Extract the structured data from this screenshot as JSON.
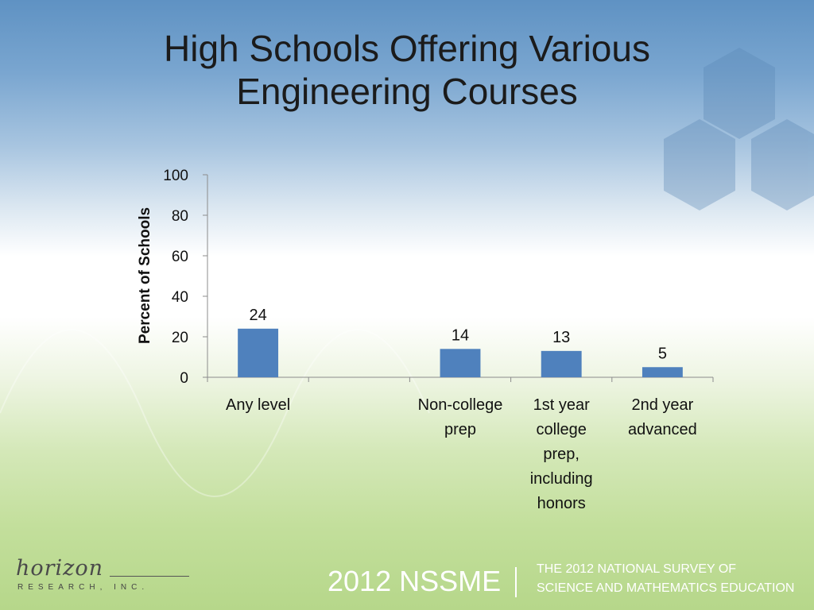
{
  "slide": {
    "title_lines": [
      "High Schools Offering Various",
      "Engineering Courses"
    ]
  },
  "chart_data": {
    "type": "bar",
    "title": "High Schools Offering Various Engineering Courses",
    "ylabel": "Percent of Schools",
    "xlabel": "",
    "ylim": [
      0,
      100
    ],
    "yticks": [
      0,
      20,
      40,
      60,
      80,
      100
    ],
    "grid": false,
    "legend": "none",
    "categories": [
      {
        "label": "Any level",
        "lines": [
          "Any level"
        ],
        "value": 24
      },
      {
        "label": "",
        "lines": [],
        "value": null
      },
      {
        "label": "Non-college prep",
        "lines": [
          "Non-college",
          "prep"
        ],
        "value": 14
      },
      {
        "label": "1st year college prep, including honors",
        "lines": [
          "1st year",
          "college",
          "prep,",
          "including",
          "honors"
        ],
        "value": 13
      },
      {
        "label": "2nd year advanced",
        "lines": [
          "2nd year",
          "advanced"
        ],
        "value": 5
      }
    ],
    "bar_color": "#4f81bd"
  },
  "footer": {
    "logo_script": "horizon",
    "logo_sub": "RESEARCH, INC.",
    "brand": "2012 NSSME",
    "desc_lines": [
      "THE 2012 NATIONAL SURVEY OF",
      "SCIENCE AND MATHEMATICS EDUCATION"
    ]
  }
}
